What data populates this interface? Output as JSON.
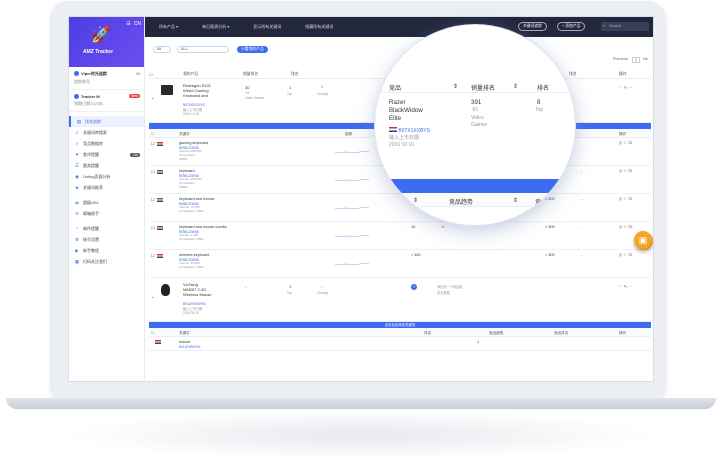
{
  "brand": {
    "name": "AMZ Tracker"
  },
  "accounts": [
    {
      "title": "Viper时光追踪",
      "sub": "追踪账号",
      "count": "48"
    },
    {
      "title": "Tracker M",
      "sub": "到期日期2023年",
      "badge": "New"
    }
  ],
  "nav": [
    {
      "label": "排名追踪",
      "icon": "chart-icon",
      "active": true
    },
    {
      "label": "关键词库搜索",
      "icon": "search-icon"
    },
    {
      "label": "竞品数据库",
      "icon": "search-icon"
    },
    {
      "label": "差评提醒",
      "icon": "heart-icon",
      "badge": "136"
    },
    {
      "label": "跟卖提醒",
      "icon": "list-icon"
    },
    {
      "label": "Listing页面分析",
      "icon": "eye-icon"
    },
    {
      "label": "关键词推荐",
      "icon": "compass-icon"
    },
    {
      "label": "超级URL",
      "icon": "link-icon"
    },
    {
      "label": "邮箱助手",
      "icon": "mail-icon"
    },
    {
      "label": "邮件提醒",
      "icon": "bell-icon"
    },
    {
      "label": "账号设置",
      "icon": "gear-icon"
    },
    {
      "label": "新手教程",
      "icon": "video-icon"
    },
    {
      "label": "扫码关注我们",
      "icon": "qr-icon"
    }
  ],
  "topbar": {
    "menus": [
      "所有产品 ▾",
      "每日图表分析 ▾",
      "显示所有关键词",
      "隐藏所有关键词"
    ],
    "btn1": "关键词追踪",
    "btn2": "+ 添加产品",
    "search_placeholder": "Search"
  },
  "filters": {
    "sel1": "All",
    "sel2": "ALL",
    "btn": "只看我的产品"
  },
  "pager": {
    "prev": "Previous",
    "page": "1",
    "next": "Ne"
  },
  "product_head": [
    "我的产品",
    "销量排名",
    "排名",
    "排名",
    "操作"
  ],
  "products": [
    {
      "title": [
        "Redragon S101",
        "Wired Gaming",
        "Keyboard and"
      ],
      "asin": "B07NZXXXXX",
      "meta": [
        "输入上市日期",
        "2016 10 16"
      ],
      "rank": "30",
      "rank_sub": "+4",
      "rank_label": "Video Games",
      "r1": "1",
      "r1_sub": "Top",
      "r2": "6",
      "r2_sub": "Change"
    },
    {
      "title": [
        "VicTsing",
        "MM057 2.4G",
        "Wireless Mouse"
      ],
      "asin": "B01ATW93F64",
      "meta": [
        "输入上市日期",
        "2016 06 14"
      ],
      "rank": "-",
      "rank_sub": "",
      "rank_label": "",
      "r1": "1",
      "r1_sub": "Top",
      "r2": "-",
      "r2_sub": "Change",
      "note": "添加到一个商品组",
      "note2": "暂无数据"
    }
  ],
  "kw_bar_label": "点击此处添加关键词",
  "kw_head": [
    "关键字",
    "趋势",
    "排名",
    "竞品趋势",
    "竞品排名",
    "操作"
  ],
  "keywords": [
    {
      "kw": "gaming keyboard",
      "asin": "B098LZ2W58",
      "meta": [
        "Volume: 458,000",
        "Competition:",
        "35800"
      ],
      "rank": "",
      "delta": "",
      "comp": "",
      "op": ""
    },
    {
      "kw": "keyboard",
      "asin": "B098LZ2W58",
      "meta": [
        "Volume: 450,000",
        "Competition:",
        "35800"
      ],
      "rank": "",
      "delta": "",
      "comp": "> 300",
      "op": "-"
    },
    {
      "kw": "keyboard and mouse",
      "asin": "B098LZ2W58",
      "meta": [
        "Volume: 78,500",
        "Competition: 3600"
      ],
      "rank": "8",
      "delta": "+4",
      "comp": "> 300",
      "op": "-"
    },
    {
      "kw": "keyboard and mouse combo",
      "asin": "B098LZ2W58",
      "meta": [
        "Volume: 1,300",
        "Competition: 3600"
      ],
      "rank": "10",
      "delta": "-8",
      "comp": "> 300",
      "op": "-"
    },
    {
      "kw": "wireless keyboard",
      "asin": "B098LZ2W58",
      "meta": [
        "Volume: 56,200",
        "Competition: 3600"
      ],
      "rank": "> 300",
      "delta": "",
      "comp": "> 300",
      "op": "-"
    }
  ],
  "kw2_row": {
    "kw": "mouse",
    "asin": "B01ATW93F64",
    "rank": "1"
  },
  "lens": {
    "head": [
      "竞品",
      "销量排名",
      "排名"
    ],
    "product": [
      "Razer",
      "BlackWidow",
      "Elite"
    ],
    "asin": "B07X1XXBYS",
    "meta": [
      "输入上市日期",
      "2016 10 16"
    ],
    "rank": "391",
    "rank_sub": "-61",
    "rank_label": [
      "Video",
      "Games"
    ],
    "r1": "8",
    "r1_sub": "Top",
    "head2": [
      "竞品趋势",
      "竞品排"
    ]
  },
  "colors": {
    "accent": "#3d6cf2",
    "topbar": "#23273d",
    "fab": "#f5a524"
  }
}
